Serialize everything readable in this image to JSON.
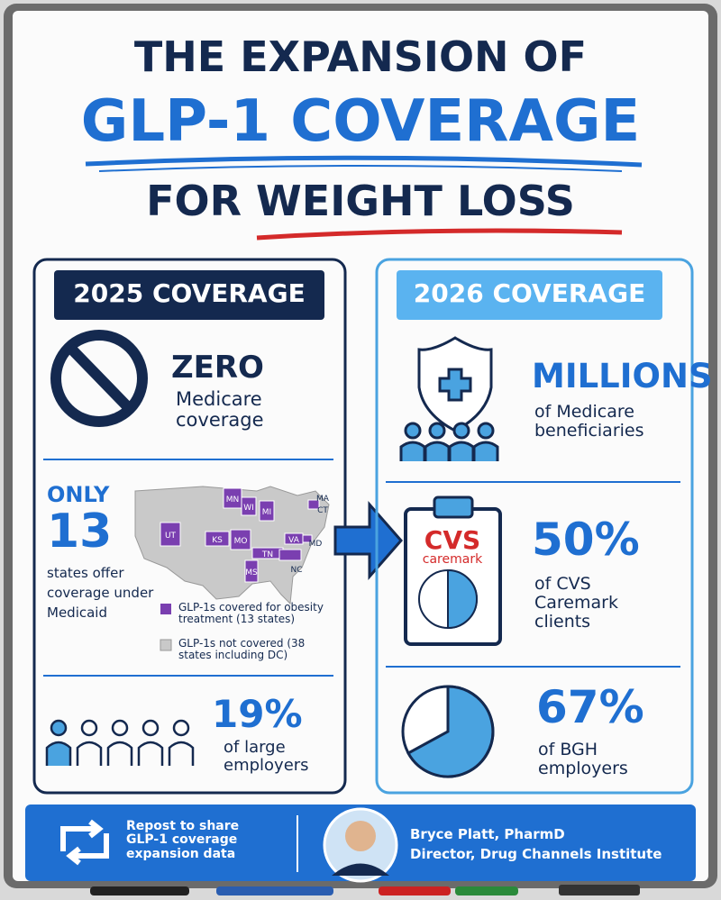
{
  "title": {
    "line1": "THE EXPANSION OF",
    "line2": "GLP-1 COVERAGE",
    "line3": "FOR WEIGHT LOSS"
  },
  "left_panel": {
    "heading": "2025 COVERAGE",
    "medicare": {
      "stat": "ZERO",
      "text": "Medicare coverage"
    },
    "medicaid": {
      "prefix": "ONLY",
      "stat": "13",
      "text": "states offer coverage under Medicaid",
      "map": {
        "states": [
          "MN",
          "WI",
          "MI",
          "MA",
          "CT",
          "UT",
          "KS",
          "MO",
          "TN",
          "VA",
          "NC",
          "MD",
          "MS"
        ],
        "legend": [
          "GLP-1s covered for obesity treatment (13 states)",
          "GLP-1s not covered (38 states including DC)"
        ]
      }
    },
    "employers": {
      "stat": "19%",
      "text": "of large employers"
    }
  },
  "right_panel": {
    "heading": "2026 COVERAGE",
    "medicare": {
      "stat": "MILLIONS",
      "text": "of Medicare beneficiaries"
    },
    "cvs": {
      "logo": "CVS",
      "logo_sub": "caremark",
      "stat": "50%",
      "text": "of CVS Caremark clients"
    },
    "bgh": {
      "stat": "67%",
      "text": "of BGH employers"
    }
  },
  "footer": {
    "cta": "Repost to share GLP-1 coverage expansion data",
    "name": "Bryce Platt, PharmD",
    "role": "Director, Drug Channels Institute"
  }
}
